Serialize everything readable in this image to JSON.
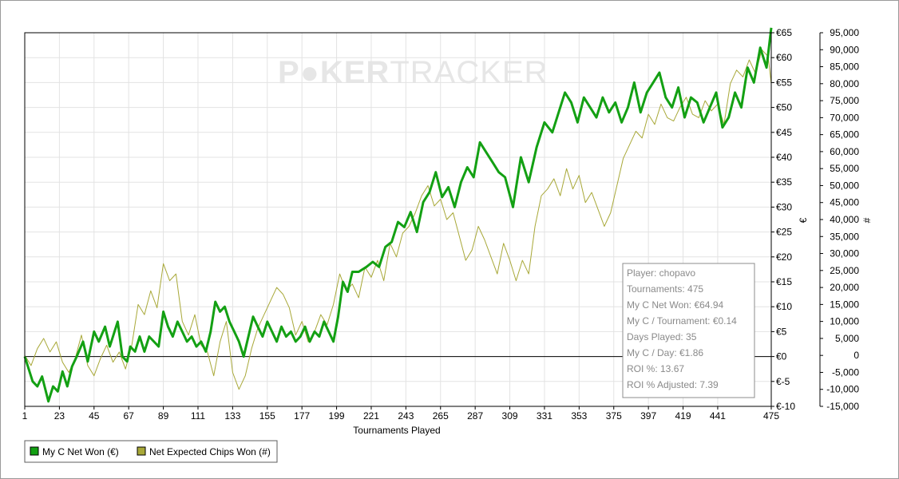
{
  "brand": {
    "part1": "P",
    "part2": "KER",
    "part3": "TRACKER"
  },
  "chart_data": {
    "type": "line",
    "xlabel": "Tournaments Played",
    "x_ticks": [
      "1",
      "23",
      "45",
      "67",
      "89",
      "111",
      "133",
      "155",
      "177",
      "199",
      "221",
      "243",
      "265",
      "287",
      "309",
      "331",
      "353",
      "375",
      "397",
      "419",
      "441",
      "475"
    ],
    "xlim": [
      1,
      475
    ],
    "y_left": {
      "title": "€",
      "ylim": [
        -10,
        65
      ],
      "ticks": [
        "€65",
        "€60",
        "€55",
        "€50",
        "€45",
        "€40",
        "€35",
        "€30",
        "€25",
        "€20",
        "€15",
        "€10",
        "€5",
        "€0",
        "€-5",
        "€-10"
      ]
    },
    "y_right": {
      "title": "#",
      "ylim": [
        -15000,
        95000
      ],
      "ticks": [
        "95,000",
        "90,000",
        "85,000",
        "80,000",
        "75,000",
        "70,000",
        "65,000",
        "60,000",
        "55,000",
        "50,000",
        "45,000",
        "40,000",
        "35,000",
        "30,000",
        "25,000",
        "20,000",
        "15,000",
        "10,000",
        "5,000",
        "0",
        "-5,000",
        "-10,000",
        "-15,000"
      ]
    },
    "grid": true,
    "zero_line": true,
    "series": [
      {
        "name": "My C Net Won (€)",
        "axis": "left",
        "color": "#13a013",
        "x": [
          1,
          6,
          9,
          12,
          16,
          19,
          22,
          25,
          28,
          31,
          34,
          38,
          41,
          45,
          48,
          52,
          55,
          60,
          63,
          66,
          68,
          71,
          74,
          77,
          80,
          83,
          86,
          89,
          92,
          95,
          98,
          101,
          104,
          107,
          110,
          113,
          116,
          119,
          122,
          125,
          128,
          131,
          134,
          137,
          140,
          143,
          146,
          149,
          152,
          155,
          158,
          161,
          164,
          167,
          170,
          173,
          176,
          179,
          182,
          185,
          188,
          191,
          194,
          197,
          200,
          203,
          206,
          209,
          213,
          218,
          222,
          226,
          230,
          234,
          238,
          242,
          246,
          250,
          254,
          258,
          262,
          266,
          270,
          274,
          278,
          282,
          286,
          290,
          294,
          298,
          302,
          306,
          311,
          316,
          321,
          326,
          331,
          336,
          340,
          344,
          348,
          352,
          356,
          360,
          364,
          368,
          372,
          376,
          380,
          384,
          388,
          392,
          396,
          400,
          404,
          408,
          412,
          416,
          420,
          424,
          428,
          432,
          436,
          440,
          444,
          448,
          452,
          456,
          460,
          464,
          468,
          472,
          475
        ],
        "y": [
          0,
          -5,
          -6,
          -4,
          -9,
          -6,
          -7,
          -3,
          -6,
          -2,
          0,
          3,
          -1,
          5,
          3,
          6,
          2,
          7,
          0,
          -1,
          2,
          1,
          4,
          1,
          4,
          3,
          2,
          9,
          6,
          4,
          7,
          5,
          3,
          4,
          2,
          3,
          1,
          5,
          11,
          9,
          10,
          7,
          5,
          3,
          0,
          4,
          8,
          6,
          4,
          7,
          5,
          3,
          6,
          4,
          5,
          3,
          4,
          6,
          3,
          5,
          4,
          7,
          5,
          3,
          8,
          15,
          13,
          17,
          17,
          18,
          19,
          18,
          22,
          23,
          27,
          26,
          29,
          25,
          31,
          33,
          37,
          32,
          34,
          30,
          35,
          38,
          36,
          43,
          41,
          39,
          37,
          36,
          30,
          40,
          35,
          42,
          47,
          45,
          49,
          53,
          51,
          47,
          52,
          50,
          48,
          52,
          49,
          51,
          47,
          50,
          55,
          49,
          53,
          55,
          57,
          52,
          50,
          54,
          48,
          52,
          51,
          47,
          50,
          53,
          46,
          48,
          53,
          50,
          58,
          55,
          62,
          58,
          66
        ]
      },
      {
        "name": "Net Expected Chips Won (#)",
        "axis": "right",
        "color": "#a8a838",
        "x": [
          1,
          5,
          9,
          13,
          17,
          21,
          25,
          29,
          33,
          37,
          41,
          45,
          49,
          53,
          57,
          61,
          65,
          69,
          73,
          77,
          81,
          85,
          89,
          93,
          97,
          101,
          105,
          109,
          113,
          117,
          121,
          125,
          129,
          133,
          137,
          141,
          145,
          149,
          153,
          157,
          161,
          165,
          169,
          173,
          177,
          181,
          185,
          189,
          193,
          197,
          201,
          205,
          209,
          213,
          217,
          221,
          225,
          229,
          233,
          237,
          241,
          245,
          249,
          253,
          257,
          261,
          265,
          269,
          273,
          277,
          281,
          285,
          289,
          293,
          297,
          301,
          305,
          309,
          313,
          317,
          321,
          325,
          329,
          333,
          337,
          341,
          345,
          349,
          353,
          357,
          361,
          365,
          369,
          373,
          377,
          381,
          385,
          389,
          393,
          397,
          401,
          405,
          409,
          413,
          417,
          421,
          425,
          429,
          433,
          437,
          441,
          445,
          449,
          453,
          457,
          461,
          465,
          469,
          473,
          475
        ],
        "y": [
          0,
          -3000,
          2000,
          5000,
          1000,
          4000,
          -2000,
          -5000,
          -1000,
          6000,
          -3000,
          -6000,
          -1000,
          3000,
          -2000,
          1000,
          -4000,
          3000,
          15000,
          12000,
          19000,
          14000,
          27000,
          22000,
          24000,
          10000,
          6000,
          12000,
          3000,
          1000,
          -6000,
          4000,
          10000,
          -5000,
          -10000,
          -6000,
          2000,
          8000,
          12000,
          16000,
          20000,
          18000,
          14000,
          6000,
          10000,
          4000,
          7000,
          12000,
          9000,
          15000,
          24000,
          19000,
          21000,
          17000,
          26000,
          23000,
          28000,
          22000,
          33000,
          29000,
          36000,
          38000,
          42000,
          47000,
          50000,
          44000,
          46000,
          40000,
          42000,
          35000,
          28000,
          31000,
          38000,
          34000,
          29000,
          24000,
          33000,
          28000,
          22000,
          28000,
          24000,
          38000,
          47000,
          49000,
          52000,
          47000,
          55000,
          49000,
          53000,
          45000,
          48000,
          43000,
          38000,
          42000,
          50000,
          58000,
          62000,
          66000,
          64000,
          71000,
          68000,
          74000,
          70000,
          69000,
          73000,
          76000,
          71000,
          70000,
          75000,
          72000,
          74000,
          68000,
          80000,
          84000,
          82000,
          87000,
          83000,
          90000,
          88000,
          80000
        ]
      }
    ],
    "info_box": [
      "Player: chopavo",
      "Tournaments: 475",
      "My C Net Won: €64.94",
      "My C / Tournament: €0.14",
      "Days Played: 35",
      "My C / Day: €1.86",
      "ROI %: 13.67",
      "ROI % Adjusted: 7.39"
    ],
    "legend_placement": "bottom-left"
  }
}
